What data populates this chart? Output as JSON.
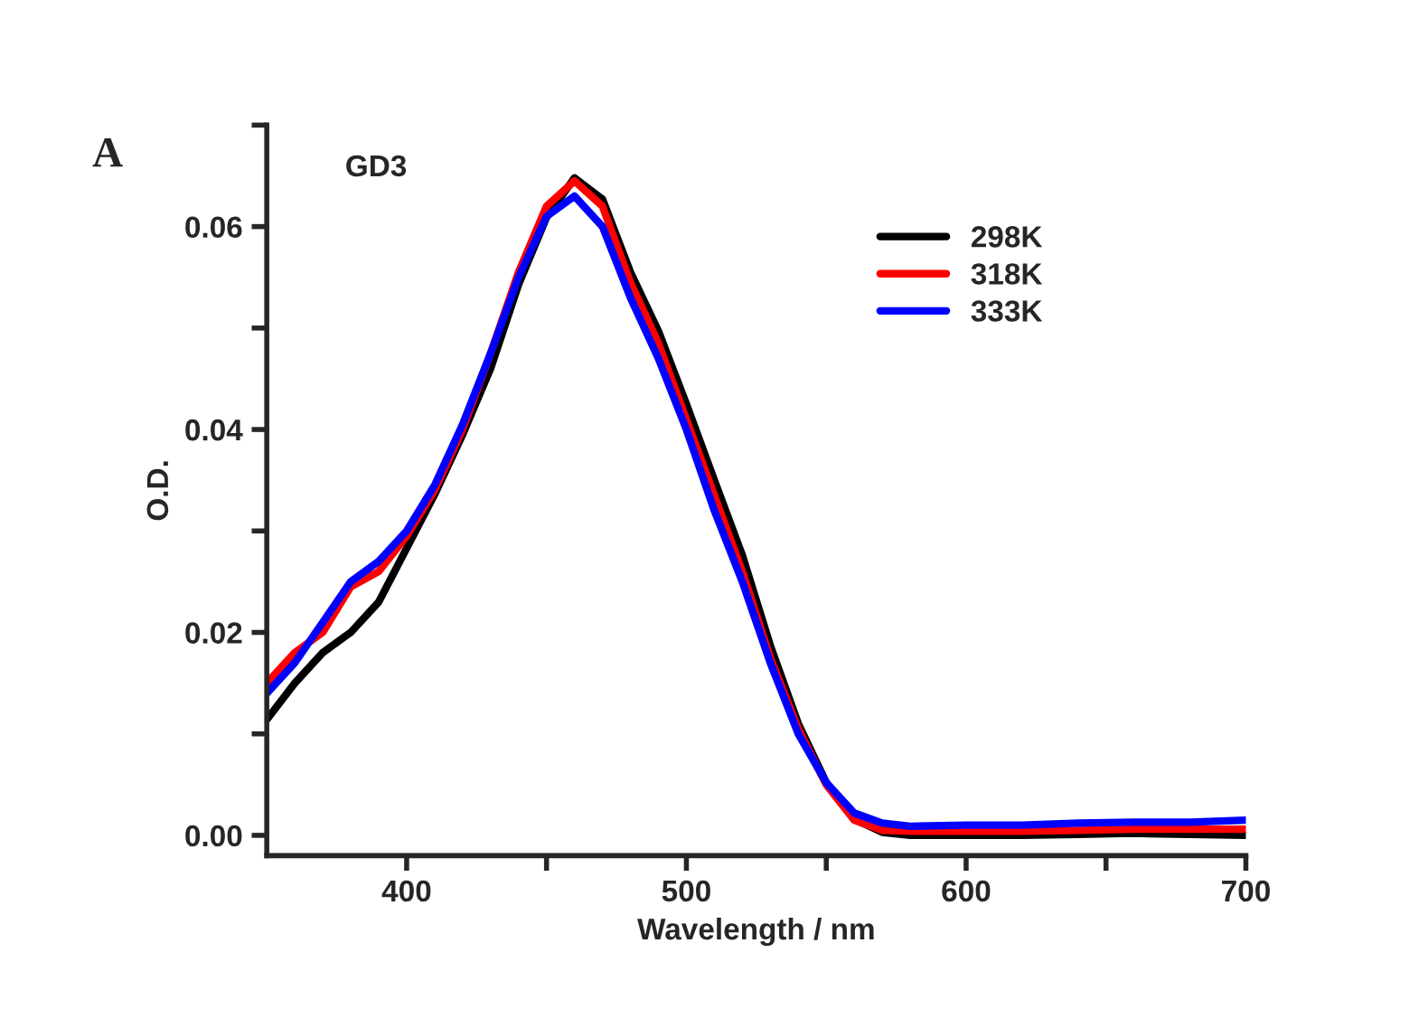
{
  "chart_data": {
    "type": "line",
    "xlabel": "Wavelength / nm",
    "ylabel": "O.D.",
    "annotations": [
      "A",
      "GD3"
    ],
    "xlim": [
      350,
      700
    ],
    "xticks": [
      400,
      {
        "value": 450,
        "label": null
      },
      500,
      {
        "value": 550,
        "label": null
      },
      600,
      {
        "value": 650,
        "label": null
      },
      700
    ],
    "ylim": [
      -0.002,
      0.07
    ],
    "yticks": [
      {
        "value": 0.0,
        "label": "0.00"
      },
      {
        "value": 0.01,
        "label": null
      },
      {
        "value": 0.02,
        "label": "0.02"
      },
      {
        "value": 0.03,
        "label": null
      },
      {
        "value": 0.04,
        "label": "0.04"
      },
      {
        "value": 0.05,
        "label": null
      },
      {
        "value": 0.06,
        "label": "0.06"
      },
      {
        "value": 0.07,
        "label": null
      }
    ],
    "grid": false,
    "legend": "top right",
    "marker": "none",
    "line_style": "solid",
    "x": [
      350,
      360,
      370,
      380,
      390,
      400,
      410,
      420,
      430,
      440,
      450,
      460,
      470,
      480,
      490,
      500,
      510,
      520,
      530,
      540,
      550,
      560,
      570,
      580,
      600,
      620,
      640,
      660,
      680,
      700
    ],
    "series": [
      {
        "name": "298K",
        "color": "#000000",
        "values": [
          0.0114,
          0.015,
          0.018,
          0.02,
          0.023,
          0.0283,
          0.0336,
          0.0395,
          0.046,
          0.0543,
          0.0609,
          0.0648,
          0.0627,
          0.0555,
          0.0497,
          0.0425,
          0.035,
          0.0276,
          0.0187,
          0.011,
          0.0052,
          0.0016,
          0.0003,
          0.0,
          0.0,
          0.0,
          0.0001,
          0.0002,
          0.0001,
          0.0
        ]
      },
      {
        "name": "318K",
        "color": "#ff0000",
        "values": [
          0.015,
          0.018,
          0.02,
          0.0245,
          0.026,
          0.0295,
          0.034,
          0.04,
          0.0475,
          0.0555,
          0.062,
          0.0645,
          0.062,
          0.0545,
          0.0485,
          0.041,
          0.0335,
          0.026,
          0.0175,
          0.0105,
          0.005,
          0.0015,
          0.0005,
          0.0004,
          0.0004,
          0.0004,
          0.0005,
          0.0006,
          0.0006,
          0.0006
        ]
      },
      {
        "name": "333K",
        "color": "#0000ff",
        "values": [
          0.014,
          0.017,
          0.021,
          0.025,
          0.027,
          0.03,
          0.0345,
          0.0405,
          0.0475,
          0.055,
          0.061,
          0.063,
          0.06,
          0.053,
          0.047,
          0.04,
          0.032,
          0.025,
          0.017,
          0.01,
          0.0052,
          0.0022,
          0.0012,
          0.0009,
          0.001,
          0.001,
          0.0012,
          0.0013,
          0.0013,
          0.0015
        ]
      }
    ]
  }
}
